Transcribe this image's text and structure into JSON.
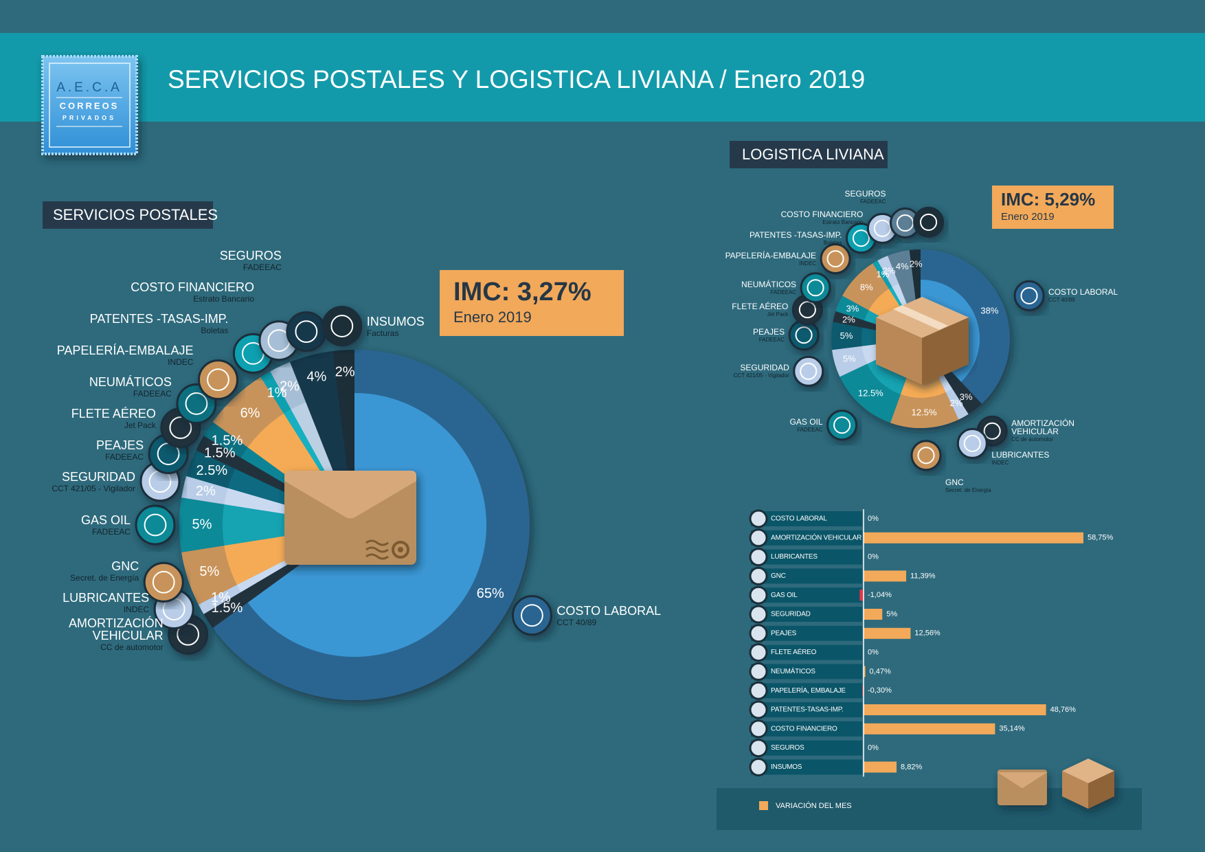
{
  "header": {
    "title": "SERVICIOS POSTALES Y LOGISTICA LIVIANA / Enero 2019",
    "logo": [
      "A.E.C.A",
      "CORREOS",
      "PRIVADOS"
    ]
  },
  "chart_data": [
    {
      "type": "pie",
      "title": "SERVICIOS POSTALES",
      "annotation": "IMC: 3,27%",
      "subtitle": "Enero 2019",
      "categories": [
        "COSTO LABORAL",
        "AMORTIZACIÓN\nVEHICULAR",
        "LUBRICANTES",
        "GNC",
        "GAS OIL",
        "SEGURIDAD",
        "PEAJES",
        "FLETE AÉREO",
        "NEUMÁTICOS",
        "PAPELERÍA-EMBALAJE",
        "PATENTES -TASAS-IMP.",
        "COSTO FINANCIERO",
        "SEGUROS",
        "INSUMOS"
      ],
      "sources": [
        "CCT 40/89",
        "CC de automotor",
        "INDEC",
        "Secret. de Energía",
        "FADEEAC",
        "CCT 421/05 - Vigilador",
        "FADEEAC",
        "Jet Pack",
        "FADEEAC",
        "INDEC",
        "Boletas",
        "Estrato Bancario",
        "FADEEAC",
        "Facturas"
      ],
      "values": [
        65,
        1.5,
        1,
        5,
        5,
        2,
        2.5,
        1.5,
        1.5,
        6,
        1,
        2,
        4,
        2
      ],
      "value_labels": [
        "65%",
        "1.5%",
        "1%",
        "5%",
        "5%",
        "2%",
        "2.5%",
        "1.5%",
        "1.5%",
        "6%",
        "1%",
        "2%",
        "4%",
        "2%"
      ],
      "colors": [
        "#2b6592",
        "#22323e",
        "#b9cde8",
        "#c8935a",
        "#0e8a98",
        "#b9cde8",
        "#0b5a6e",
        "#21323e",
        "#0e6f80",
        "#c8935a",
        "#10a0b0",
        "#a7bfd6",
        "#17394b",
        "#1f2d38"
      ],
      "inner_colors": [
        "#3a97d4",
        "#22323e",
        "#c9daf0",
        "#f5ab55",
        "#16a3b2",
        "#c9daf0",
        "#0d6a80",
        "#21323e",
        "#0f8496",
        "#f5ab55",
        "#15b0c0",
        "#bcd0e4",
        "#17394b",
        "#1f2d38"
      ]
    },
    {
      "type": "pie",
      "title": "LOGISTICA LIVIANA",
      "annotation": "IMC: 5,29%",
      "subtitle": "Enero 2019",
      "categories": [
        "COSTO LABORAL",
        "AMORTIZACIÓN\nVEHICULAR",
        "LUBRICANTES",
        "GNC",
        "GAS OIL",
        "SEGURIDAD",
        "PEAJES",
        "FLETE AÉREO",
        "NEUMÁTICOS",
        "PAPELERÍA-EMBALAJE",
        "PATENTES -TASAS-IMP.",
        "COSTO FINANCIERO",
        "SEGUROS",
        null
      ],
      "sources": [
        "CCT 40/89",
        "CC de automotor",
        "INDEC",
        "Secret. de Energía",
        "FADEEAC",
        "CCT 421/05 - Vigilador",
        "FADEEAC",
        "Jet Pack",
        "FADEEAC",
        "INDEC",
        "Boletas",
        "Estrato Bancario",
        "FADEEAC",
        null
      ],
      "values": [
        38,
        3,
        2,
        12.5,
        12.5,
        5,
        5,
        2,
        3,
        8,
        1,
        2,
        4,
        2
      ],
      "value_labels": [
        "38%",
        "3%",
        "2%",
        "12.5%",
        "12.5%",
        "5%",
        "5%",
        "2%",
        "3%",
        "8%",
        "1%",
        "2%",
        "4%",
        "2%"
      ],
      "colors": [
        "#2b6592",
        "#22323e",
        "#b9cde8",
        "#c8935a",
        "#0e8a98",
        "#b9cde8",
        "#0b5a6e",
        "#21323e",
        "#0e8a98",
        "#c8935a",
        "#10a0b0",
        "#b9cde8",
        "#5d7f96",
        "#1f2d38"
      ],
      "inner_colors": [
        "#3a97d4",
        "#22323e",
        "#c9daf0",
        "#f5ab55",
        "#16a3b2",
        "#c9daf0",
        "#0d6a80",
        "#21323e",
        "#16a3b2",
        "#f5ab55",
        "#15b0c0",
        "#c9daf0",
        "#5d7f96",
        "#1f2d38"
      ]
    },
    {
      "type": "bar",
      "orientation": "horizontal",
      "categories": [
        "COSTO LABORAL",
        "AMORTIZACIÓN VEHICULAR",
        "LUBRICANTES",
        "GNC",
        "GAS OIL",
        "SEGURIDAD",
        "PEAJES",
        "FLETE AÉREO",
        "NEUMÁTICOS",
        "PAPELERÍA, EMBALAJE",
        "PATENTES-TASAS-IMP.",
        "COSTO FINANCIERO",
        "SEGUROS",
        "INSUMOS"
      ],
      "series": [
        {
          "name": "VARIACIÓN DEL MES",
          "color": "#f2a95a",
          "negative_color": "#e0394a",
          "values": [
            0,
            58.75,
            0,
            11.39,
            -1.04,
            5,
            12.56,
            0,
            0.47,
            -0.3,
            48.76,
            35.14,
            0,
            8.82
          ],
          "value_labels": [
            "0%",
            "58,75%",
            "0%",
            "11,39%",
            "-1,04%",
            "5%",
            "12,56%",
            "0%",
            "0,47%",
            "-0,30%",
            "48,76%",
            "35,14%",
            "0%",
            "8,82%"
          ]
        }
      ]
    }
  ]
}
